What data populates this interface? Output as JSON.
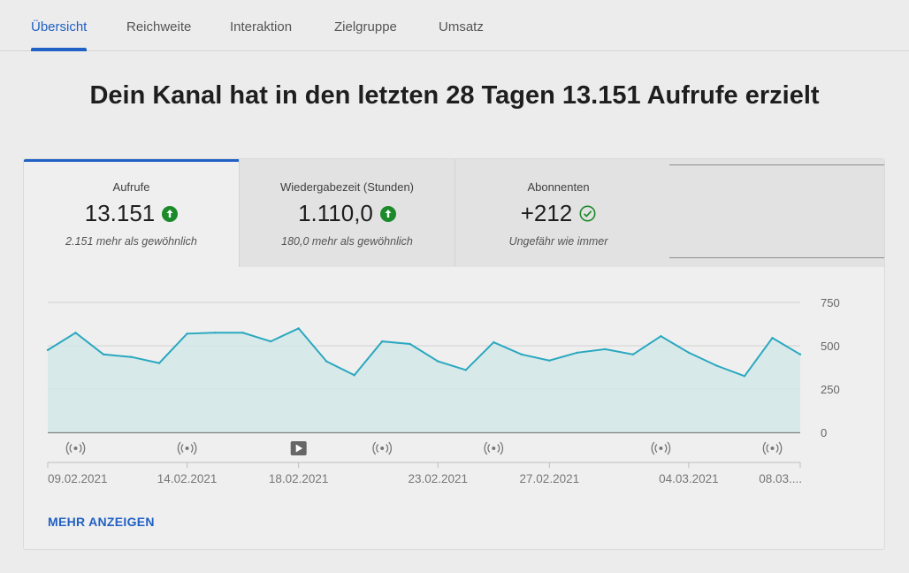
{
  "tabs": [
    "Übersicht",
    "Reichweite",
    "Interaktion",
    "Zielgruppe",
    "Umsatz"
  ],
  "headline": "Dein Kanal hat in den letzten 28 Tagen 13.151 Aufrufe erzielt",
  "metrics": [
    {
      "label": "Aufrufe",
      "value": "13.151",
      "sub": "2.151 mehr als gewöhnlich",
      "status": "up"
    },
    {
      "label": "Wiedergabezeit (Stunden)",
      "value": "1.110,0",
      "sub": "180,0 mehr als gewöhnlich",
      "status": "up"
    },
    {
      "label": "Abonnenten",
      "value": "+212",
      "sub": "Ungefähr wie immer",
      "status": "check"
    }
  ],
  "colors": {
    "accent": "#2160c4",
    "line": "#2aa8bf",
    "area": "#d3e7e9",
    "up": "#1c8a2a"
  },
  "chart_data": {
    "type": "area",
    "series": [
      {
        "values": [
          475,
          575,
          450,
          435,
          400,
          570,
          575,
          575,
          525,
          600,
          410,
          330,
          525,
          510,
          410,
          360,
          520,
          450,
          415,
          460,
          480,
          450,
          555,
          460,
          385,
          325,
          545,
          450
        ]
      }
    ],
    "ylim": [
      0,
      750
    ],
    "yticks": [
      "750",
      "500",
      "250",
      "0"
    ],
    "xticks": [
      "09.02.2021",
      "14.02.2021",
      "18.02.2021",
      "23.02.2021",
      "27.02.2021",
      "04.03.2021",
      "08.03...."
    ],
    "grid": true,
    "markers": [
      {
        "day": 1,
        "type": "live-icon"
      },
      {
        "day": 5,
        "type": "live-icon"
      },
      {
        "day": 9,
        "type": "video-icon"
      },
      {
        "day": 12,
        "type": "live-icon"
      },
      {
        "day": 16,
        "type": "live-icon"
      },
      {
        "day": 22,
        "type": "live-icon"
      },
      {
        "day": 26,
        "type": "live-icon"
      }
    ]
  },
  "more_label": "MEHR ANZEIGEN"
}
